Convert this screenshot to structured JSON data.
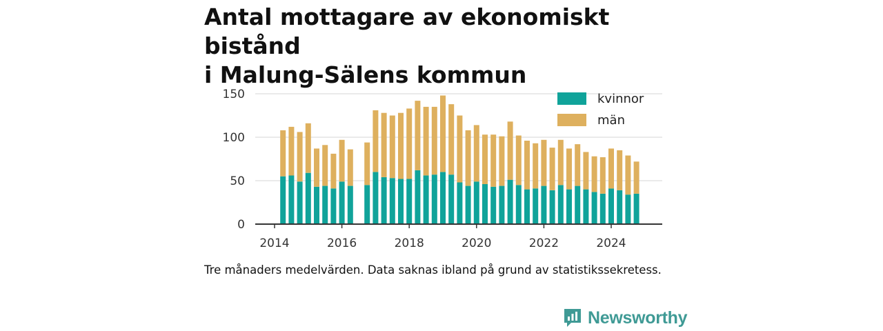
{
  "title": {
    "line1": "Antal mottagare av ekonomiskt bistånd",
    "line2": "i Malung-Sälens kommun"
  },
  "note": "Tre månaders medelvärden. Data saknas ibland på grund av statistikssekretess.",
  "brand": {
    "name": "Newsworthy",
    "icon": "newsworthy-logo-icon"
  },
  "colors": {
    "kvinnor": "#10a39a",
    "man": "#deb05e",
    "grid": "#dddddd",
    "axis": "#333333"
  },
  "chart_data": {
    "type": "bar",
    "stacked": true,
    "x_ticks": [
      "2014",
      "2016",
      "2018",
      "2020",
      "2022",
      "2024"
    ],
    "y_ticks": [
      "0",
      "50",
      "100",
      "150"
    ],
    "ylim": [
      0,
      150
    ],
    "grid": true,
    "legend_position": "top-right",
    "x": [
      "2014-04",
      "2014-07",
      "2014-10",
      "2015-01",
      "2015-04",
      "2015-07",
      "2015-10",
      "2016-01",
      "2016-04",
      "2016-10",
      "2017-01",
      "2017-04",
      "2017-07",
      "2017-10",
      "2018-01",
      "2018-04",
      "2018-07",
      "2018-10",
      "2019-01",
      "2019-04",
      "2019-07",
      "2019-10",
      "2020-01",
      "2020-04",
      "2020-07",
      "2020-10",
      "2021-01",
      "2021-04",
      "2021-07",
      "2021-10",
      "2022-01",
      "2022-04",
      "2022-07",
      "2022-10",
      "2023-01",
      "2023-04",
      "2023-07",
      "2023-10",
      "2024-01",
      "2024-04",
      "2024-07",
      "2024-10"
    ],
    "series": [
      {
        "name": "kvinnor",
        "values": [
          55,
          56,
          49,
          59,
          43,
          44,
          41,
          49,
          44,
          45,
          60,
          54,
          53,
          52,
          52,
          62,
          56,
          57,
          60,
          57,
          48,
          44,
          49,
          46,
          43,
          44,
          51,
          45,
          40,
          41,
          44,
          39,
          45,
          40,
          44,
          40,
          37,
          35,
          41,
          39,
          34,
          35
        ]
      },
      {
        "name": "män",
        "values": [
          53,
          56,
          57,
          57,
          44,
          47,
          40,
          48,
          42,
          49,
          71,
          74,
          72,
          76,
          81,
          80,
          79,
          78,
          88,
          81,
          77,
          64,
          65,
          57,
          60,
          57,
          67,
          57,
          56,
          52,
          53,
          49,
          52,
          47,
          48,
          43,
          41,
          42,
          46,
          46,
          45,
          37
        ]
      }
    ]
  }
}
